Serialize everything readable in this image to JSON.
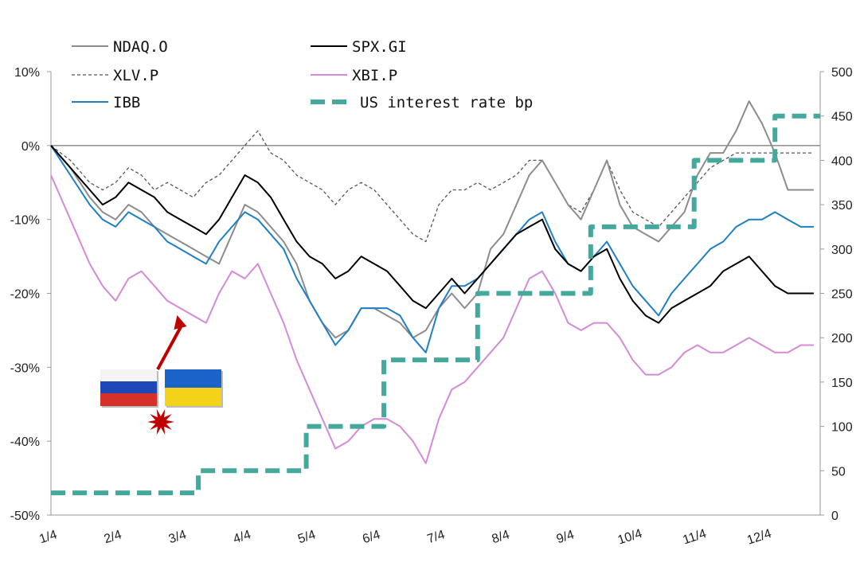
{
  "chart_data": {
    "type": "line",
    "x_ticks": [
      "1/4",
      "2/4",
      "3/4",
      "4/4",
      "5/4",
      "6/4",
      "7/4",
      "8/4",
      "9/4",
      "10/4",
      "11/4",
      "12/4"
    ],
    "y_left": {
      "ticks": [
        "10%",
        "0%",
        "-10%",
        "-20%",
        "-30%",
        "-40%",
        "-50%"
      ],
      "range": [
        -50,
        10
      ]
    },
    "y_right": {
      "ticks": [
        "500",
        "450",
        "400",
        "350",
        "300",
        "250",
        "200",
        "150",
        "100",
        "50",
        "0"
      ],
      "range": [
        0,
        500
      ]
    },
    "legend_placement": "top",
    "grid": false,
    "annotation": {
      "type": "flags-arrow",
      "flags": [
        "Russia",
        "Ukraine"
      ],
      "arrow_color": "#c00000",
      "burst_color": "#c00000",
      "at_month": 2.1
    },
    "series": [
      {
        "name": "NDAQ.O",
        "axis": "left",
        "color": "#8c8c8c",
        "style": "solid",
        "points": [
          [
            0,
            0
          ],
          [
            0.3,
            -3
          ],
          [
            0.6,
            -7
          ],
          [
            0.8,
            -9
          ],
          [
            1.0,
            -10
          ],
          [
            1.2,
            -8
          ],
          [
            1.4,
            -9
          ],
          [
            1.6,
            -11
          ],
          [
            1.8,
            -12
          ],
          [
            2.0,
            -13
          ],
          [
            2.2,
            -14
          ],
          [
            2.4,
            -15
          ],
          [
            2.6,
            -16
          ],
          [
            2.8,
            -12
          ],
          [
            3.0,
            -8
          ],
          [
            3.2,
            -9
          ],
          [
            3.4,
            -11
          ],
          [
            3.6,
            -13
          ],
          [
            3.8,
            -16
          ],
          [
            4.0,
            -21
          ],
          [
            4.2,
            -24
          ],
          [
            4.4,
            -26
          ],
          [
            4.6,
            -25
          ],
          [
            4.8,
            -22
          ],
          [
            5.0,
            -22
          ],
          [
            5.2,
            -23
          ],
          [
            5.4,
            -24
          ],
          [
            5.6,
            -26
          ],
          [
            5.8,
            -25
          ],
          [
            6.0,
            -22
          ],
          [
            6.2,
            -20
          ],
          [
            6.4,
            -22
          ],
          [
            6.6,
            -20
          ],
          [
            6.8,
            -14
          ],
          [
            7.0,
            -12
          ],
          [
            7.2,
            -8
          ],
          [
            7.4,
            -4
          ],
          [
            7.6,
            -2
          ],
          [
            7.8,
            -5
          ],
          [
            8.0,
            -8
          ],
          [
            8.2,
            -10
          ],
          [
            8.4,
            -6
          ],
          [
            8.6,
            -2
          ],
          [
            8.8,
            -8
          ],
          [
            9.0,
            -11
          ],
          [
            9.2,
            -12
          ],
          [
            9.4,
            -13
          ],
          [
            9.6,
            -11
          ],
          [
            9.8,
            -9
          ],
          [
            10.0,
            -4
          ],
          [
            10.2,
            -1
          ],
          [
            10.4,
            -1
          ],
          [
            10.6,
            2
          ],
          [
            10.8,
            6
          ],
          [
            11.0,
            3
          ],
          [
            11.2,
            -1
          ],
          [
            11.4,
            -6
          ],
          [
            11.6,
            -6
          ],
          [
            11.8,
            -6
          ]
        ]
      },
      {
        "name": "SPX.GI",
        "axis": "left",
        "color": "#000000",
        "style": "solid",
        "points": [
          [
            0,
            0
          ],
          [
            0.3,
            -3
          ],
          [
            0.6,
            -6
          ],
          [
            0.8,
            -8
          ],
          [
            1.0,
            -7
          ],
          [
            1.2,
            -5
          ],
          [
            1.4,
            -6
          ],
          [
            1.6,
            -7
          ],
          [
            1.8,
            -9
          ],
          [
            2.0,
            -10
          ],
          [
            2.2,
            -11
          ],
          [
            2.4,
            -12
          ],
          [
            2.6,
            -10
          ],
          [
            2.8,
            -7
          ],
          [
            3.0,
            -4
          ],
          [
            3.2,
            -5
          ],
          [
            3.4,
            -7
          ],
          [
            3.6,
            -10
          ],
          [
            3.8,
            -13
          ],
          [
            4.0,
            -15
          ],
          [
            4.2,
            -16
          ],
          [
            4.4,
            -18
          ],
          [
            4.6,
            -17
          ],
          [
            4.8,
            -15
          ],
          [
            5.0,
            -16
          ],
          [
            5.2,
            -17
          ],
          [
            5.4,
            -19
          ],
          [
            5.6,
            -21
          ],
          [
            5.8,
            -22
          ],
          [
            6.0,
            -20
          ],
          [
            6.2,
            -18
          ],
          [
            6.4,
            -20
          ],
          [
            6.6,
            -18
          ],
          [
            6.8,
            -16
          ],
          [
            7.0,
            -14
          ],
          [
            7.2,
            -12
          ],
          [
            7.4,
            -11
          ],
          [
            7.6,
            -10
          ],
          [
            7.8,
            -14
          ],
          [
            8.0,
            -16
          ],
          [
            8.2,
            -17
          ],
          [
            8.4,
            -15
          ],
          [
            8.6,
            -14
          ],
          [
            8.8,
            -18
          ],
          [
            9.0,
            -21
          ],
          [
            9.2,
            -23
          ],
          [
            9.4,
            -24
          ],
          [
            9.6,
            -22
          ],
          [
            9.8,
            -21
          ],
          [
            10.0,
            -20
          ],
          [
            10.2,
            -19
          ],
          [
            10.4,
            -17
          ],
          [
            10.6,
            -16
          ],
          [
            10.8,
            -15
          ],
          [
            11.0,
            -17
          ],
          [
            11.2,
            -19
          ],
          [
            11.4,
            -20
          ],
          [
            11.6,
            -20
          ],
          [
            11.8,
            -20
          ]
        ]
      },
      {
        "name": "XLV.P",
        "axis": "left",
        "color": "#555555",
        "style": "dashed",
        "points": [
          [
            0,
            0
          ],
          [
            0.3,
            -2
          ],
          [
            0.6,
            -5
          ],
          [
            0.8,
            -6
          ],
          [
            1.0,
            -5
          ],
          [
            1.2,
            -3
          ],
          [
            1.4,
            -4
          ],
          [
            1.6,
            -6
          ],
          [
            1.8,
            -5
          ],
          [
            2.0,
            -6
          ],
          [
            2.2,
            -7
          ],
          [
            2.4,
            -5
          ],
          [
            2.6,
            -4
          ],
          [
            2.8,
            -2
          ],
          [
            3.0,
            0
          ],
          [
            3.2,
            2
          ],
          [
            3.4,
            -1
          ],
          [
            3.6,
            -2
          ],
          [
            3.8,
            -4
          ],
          [
            4.0,
            -5
          ],
          [
            4.2,
            -6
          ],
          [
            4.4,
            -8
          ],
          [
            4.6,
            -6
          ],
          [
            4.8,
            -5
          ],
          [
            5.0,
            -6
          ],
          [
            5.2,
            -8
          ],
          [
            5.4,
            -10
          ],
          [
            5.6,
            -12
          ],
          [
            5.8,
            -13
          ],
          [
            6.0,
            -8
          ],
          [
            6.2,
            -6
          ],
          [
            6.4,
            -6
          ],
          [
            6.6,
            -5
          ],
          [
            6.8,
            -6
          ],
          [
            7.0,
            -5
          ],
          [
            7.2,
            -4
          ],
          [
            7.4,
            -2
          ],
          [
            7.6,
            -2
          ],
          [
            7.8,
            -5
          ],
          [
            8.0,
            -8
          ],
          [
            8.2,
            -9
          ],
          [
            8.4,
            -6
          ],
          [
            8.6,
            -2
          ],
          [
            8.8,
            -6
          ],
          [
            9.0,
            -9
          ],
          [
            9.2,
            -10
          ],
          [
            9.4,
            -11
          ],
          [
            9.6,
            -9
          ],
          [
            9.8,
            -7
          ],
          [
            10.0,
            -5
          ],
          [
            10.2,
            -3
          ],
          [
            10.4,
            -2
          ],
          [
            10.6,
            -1
          ],
          [
            10.8,
            -1
          ],
          [
            11.0,
            -1
          ],
          [
            11.2,
            -1
          ],
          [
            11.4,
            -1
          ],
          [
            11.6,
            -1
          ],
          [
            11.8,
            -1
          ]
        ]
      },
      {
        "name": "XBI.P",
        "axis": "left",
        "color": "#d38ad8",
        "style": "solid",
        "points": [
          [
            0,
            -4
          ],
          [
            0.3,
            -10
          ],
          [
            0.6,
            -16
          ],
          [
            0.8,
            -19
          ],
          [
            1.0,
            -21
          ],
          [
            1.2,
            -18
          ],
          [
            1.4,
            -17
          ],
          [
            1.6,
            -19
          ],
          [
            1.8,
            -21
          ],
          [
            2.0,
            -22
          ],
          [
            2.2,
            -23
          ],
          [
            2.4,
            -24
          ],
          [
            2.6,
            -20
          ],
          [
            2.8,
            -17
          ],
          [
            3.0,
            -18
          ],
          [
            3.2,
            -16
          ],
          [
            3.4,
            -20
          ],
          [
            3.6,
            -24
          ],
          [
            3.8,
            -29
          ],
          [
            4.0,
            -33
          ],
          [
            4.2,
            -37
          ],
          [
            4.4,
            -41
          ],
          [
            4.6,
            -40
          ],
          [
            4.8,
            -38
          ],
          [
            5.0,
            -37
          ],
          [
            5.2,
            -37
          ],
          [
            5.4,
            -38
          ],
          [
            5.6,
            -40
          ],
          [
            5.8,
            -43
          ],
          [
            6.0,
            -37
          ],
          [
            6.2,
            -33
          ],
          [
            6.4,
            -32
          ],
          [
            6.6,
            -30
          ],
          [
            6.8,
            -28
          ],
          [
            7.0,
            -26
          ],
          [
            7.2,
            -22
          ],
          [
            7.4,
            -18
          ],
          [
            7.6,
            -17
          ],
          [
            7.8,
            -20
          ],
          [
            8.0,
            -24
          ],
          [
            8.2,
            -25
          ],
          [
            8.4,
            -24
          ],
          [
            8.6,
            -24
          ],
          [
            8.8,
            -26
          ],
          [
            9.0,
            -29
          ],
          [
            9.2,
            -31
          ],
          [
            9.4,
            -31
          ],
          [
            9.6,
            -30
          ],
          [
            9.8,
            -28
          ],
          [
            10.0,
            -27
          ],
          [
            10.2,
            -28
          ],
          [
            10.4,
            -28
          ],
          [
            10.6,
            -27
          ],
          [
            10.8,
            -26
          ],
          [
            11.0,
            -27
          ],
          [
            11.2,
            -28
          ],
          [
            11.4,
            -28
          ],
          [
            11.6,
            -27
          ],
          [
            11.8,
            -27
          ]
        ]
      },
      {
        "name": "IBB",
        "axis": "left",
        "color": "#1f7fc4",
        "style": "solid",
        "points": [
          [
            0,
            0
          ],
          [
            0.3,
            -4
          ],
          [
            0.6,
            -8
          ],
          [
            0.8,
            -10
          ],
          [
            1.0,
            -11
          ],
          [
            1.2,
            -9
          ],
          [
            1.4,
            -10
          ],
          [
            1.6,
            -11
          ],
          [
            1.8,
            -13
          ],
          [
            2.0,
            -14
          ],
          [
            2.2,
            -15
          ],
          [
            2.4,
            -16
          ],
          [
            2.6,
            -13
          ],
          [
            2.8,
            -11
          ],
          [
            3.0,
            -9
          ],
          [
            3.2,
            -10
          ],
          [
            3.4,
            -12
          ],
          [
            3.6,
            -14
          ],
          [
            3.8,
            -18
          ],
          [
            4.0,
            -21
          ],
          [
            4.2,
            -24
          ],
          [
            4.4,
            -27
          ],
          [
            4.6,
            -25
          ],
          [
            4.8,
            -22
          ],
          [
            5.0,
            -22
          ],
          [
            5.2,
            -22
          ],
          [
            5.4,
            -23
          ],
          [
            5.6,
            -26
          ],
          [
            5.8,
            -28
          ],
          [
            6.0,
            -22
          ],
          [
            6.2,
            -19
          ],
          [
            6.4,
            -19
          ],
          [
            6.6,
            -18
          ],
          [
            6.8,
            -16
          ],
          [
            7.0,
            -14
          ],
          [
            7.2,
            -12
          ],
          [
            7.4,
            -10
          ],
          [
            7.6,
            -9
          ],
          [
            7.8,
            -13
          ],
          [
            8.0,
            -16
          ],
          [
            8.2,
            -17
          ],
          [
            8.4,
            -15
          ],
          [
            8.6,
            -13
          ],
          [
            8.8,
            -16
          ],
          [
            9.0,
            -19
          ],
          [
            9.2,
            -21
          ],
          [
            9.4,
            -23
          ],
          [
            9.6,
            -20
          ],
          [
            9.8,
            -18
          ],
          [
            10.0,
            -16
          ],
          [
            10.2,
            -14
          ],
          [
            10.4,
            -13
          ],
          [
            10.6,
            -11
          ],
          [
            10.8,
            -10
          ],
          [
            11.0,
            -10
          ],
          [
            11.2,
            -9
          ],
          [
            11.4,
            -10
          ],
          [
            11.6,
            -11
          ],
          [
            11.8,
            -11
          ]
        ]
      },
      {
        "name": "US interest rate bp",
        "axis": "right",
        "color": "#45a89c",
        "style": "thick-dashed",
        "step": true,
        "points": [
          [
            0,
            25
          ],
          [
            2.28,
            25
          ],
          [
            2.28,
            50
          ],
          [
            3.95,
            50
          ],
          [
            3.95,
            100
          ],
          [
            5.15,
            100
          ],
          [
            5.15,
            175
          ],
          [
            6.6,
            175
          ],
          [
            6.6,
            250
          ],
          [
            8.35,
            250
          ],
          [
            8.35,
            325
          ],
          [
            9.95,
            325
          ],
          [
            9.95,
            400
          ],
          [
            11.2,
            400
          ],
          [
            11.2,
            450
          ],
          [
            11.9,
            450
          ]
        ]
      }
    ]
  }
}
